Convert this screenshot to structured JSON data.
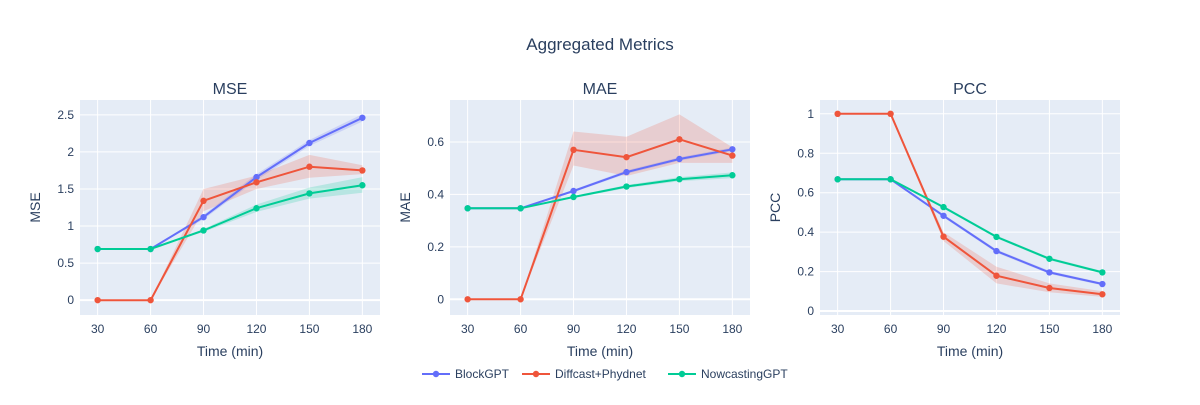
{
  "title": "Aggregated Metrics",
  "colors": {
    "BlockGPT": "#636efa",
    "Diffcast+Phydnet": "#ef553b",
    "NowcastingGPT": "#00cc96",
    "plot_bg": "#e5ecf6",
    "text": "#2a3f5f"
  },
  "legend": [
    "BlockGPT",
    "Diffcast+Phydnet",
    "NowcastingGPT"
  ],
  "chart_data": [
    {
      "type": "line",
      "title": "MSE",
      "xlabel": "Time (min)",
      "ylabel": "MSE",
      "x": [
        30,
        60,
        90,
        120,
        150,
        180
      ],
      "xlim": [
        20,
        190
      ],
      "ylim": [
        -0.2,
        2.7
      ],
      "yticks": [
        0,
        0.5,
        1,
        1.5,
        2,
        2.5
      ],
      "ytick_labels": [
        "0",
        "0.5",
        "1",
        "1.5",
        "2",
        "2.5"
      ],
      "grid": true,
      "series": [
        {
          "name": "BlockGPT",
          "values": [
            0.69,
            0.69,
            1.12,
            1.66,
            2.12,
            2.46
          ],
          "lower": [
            0.69,
            0.69,
            1.09,
            1.62,
            2.08,
            2.41
          ],
          "upper": [
            0.69,
            0.69,
            1.15,
            1.7,
            2.16,
            2.51
          ]
        },
        {
          "name": "Diffcast+Phydnet",
          "values": [
            0.0,
            0.0,
            1.34,
            1.59,
            1.8,
            1.75
          ],
          "lower": [
            0.0,
            0.0,
            1.2,
            1.5,
            1.65,
            1.7
          ],
          "upper": [
            0.0,
            0.0,
            1.5,
            1.68,
            1.96,
            1.82
          ]
        },
        {
          "name": "NowcastingGPT",
          "values": [
            0.69,
            0.69,
            0.94,
            1.24,
            1.44,
            1.55
          ],
          "lower": [
            0.69,
            0.69,
            0.92,
            1.19,
            1.37,
            1.45
          ],
          "upper": [
            0.69,
            0.69,
            0.96,
            1.29,
            1.52,
            1.66
          ]
        }
      ]
    },
    {
      "type": "line",
      "title": "MAE",
      "xlabel": "Time (min)",
      "ylabel": "MAE",
      "x": [
        30,
        60,
        90,
        120,
        150,
        180
      ],
      "xlim": [
        20,
        190
      ],
      "ylim": [
        -0.06,
        0.76
      ],
      "yticks": [
        0,
        0.2,
        0.4,
        0.6
      ],
      "ytick_labels": [
        "0",
        "0.2",
        "0.4",
        "0.6"
      ],
      "grid": true,
      "series": [
        {
          "name": "BlockGPT",
          "values": [
            0.347,
            0.347,
            0.413,
            0.485,
            0.535,
            0.572
          ],
          "lower": [
            0.347,
            0.347,
            0.408,
            0.478,
            0.528,
            0.565
          ],
          "upper": [
            0.347,
            0.347,
            0.418,
            0.492,
            0.542,
            0.579
          ]
        },
        {
          "name": "Diffcast+Phydnet",
          "values": [
            0.0,
            0.0,
            0.57,
            0.542,
            0.61,
            0.548
          ],
          "lower": [
            0.0,
            0.0,
            0.51,
            0.47,
            0.52,
            0.52
          ],
          "upper": [
            0.0,
            0.0,
            0.64,
            0.62,
            0.705,
            0.58
          ]
        },
        {
          "name": "NowcastingGPT",
          "values": [
            0.347,
            0.347,
            0.39,
            0.43,
            0.458,
            0.473
          ],
          "lower": [
            0.347,
            0.347,
            0.386,
            0.424,
            0.45,
            0.462
          ],
          "upper": [
            0.347,
            0.347,
            0.394,
            0.436,
            0.466,
            0.484
          ]
        }
      ]
    },
    {
      "type": "line",
      "title": "PCC",
      "xlabel": "Time (min)",
      "ylabel": "PCC",
      "x": [
        30,
        60,
        90,
        120,
        150,
        180
      ],
      "xlim": [
        20,
        190
      ],
      "ylim": [
        -0.02,
        1.07
      ],
      "yticks": [
        0,
        0.2,
        0.4,
        0.6,
        0.8,
        1
      ],
      "ytick_labels": [
        "0",
        "0.2",
        "0.4",
        "0.6",
        "0.8",
        "1"
      ],
      "grid": true,
      "series": [
        {
          "name": "BlockGPT",
          "values": [
            0.668,
            0.668,
            0.483,
            0.304,
            0.196,
            0.137
          ],
          "lower": [
            0.668,
            0.668,
            0.475,
            0.296,
            0.188,
            0.13
          ],
          "upper": [
            0.668,
            0.668,
            0.491,
            0.312,
            0.204,
            0.144
          ]
        },
        {
          "name": "Diffcast+Phydnet",
          "values": [
            1.0,
            1.0,
            0.377,
            0.179,
            0.117,
            0.085
          ],
          "lower": [
            1.0,
            1.0,
            0.355,
            0.14,
            0.095,
            0.072
          ],
          "upper": [
            1.0,
            1.0,
            0.4,
            0.225,
            0.14,
            0.1
          ]
        },
        {
          "name": "NowcastingGPT",
          "values": [
            0.668,
            0.668,
            0.527,
            0.376,
            0.265,
            0.196
          ],
          "lower": [
            0.668,
            0.668,
            0.52,
            0.369,
            0.258,
            0.19
          ],
          "upper": [
            0.668,
            0.668,
            0.534,
            0.383,
            0.272,
            0.203
          ]
        }
      ]
    }
  ]
}
